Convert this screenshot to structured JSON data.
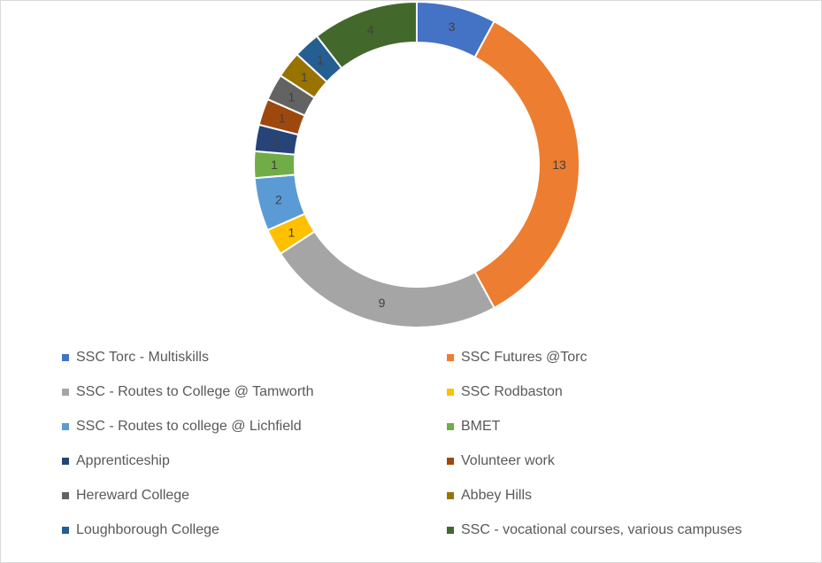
{
  "chart_data": {
    "type": "pie",
    "variant": "doughnut",
    "title": "",
    "categories": [
      "SSC Torc - Multiskills",
      "SSC Futures @Torc",
      "SSC - Routes to College @ Tamworth",
      "SSC Rodbaston",
      "SSC  - Routes to college @ Lichfield",
      "BMET",
      "Apprenticeship",
      "Volunteer work",
      "Hereward College",
      "Abbey Hills",
      "Loughborough College",
      "SSC - vocational courses, various campuses"
    ],
    "values": [
      3,
      13,
      9,
      1,
      2,
      1,
      1,
      1,
      1,
      1,
      1,
      4
    ],
    "colors": [
      "#4472C4",
      "#ED7D31",
      "#A5A5A5",
      "#FFC000",
      "#5B9BD5",
      "#70AD47",
      "#264478",
      "#9E480E",
      "#636363",
      "#997300",
      "#255E91",
      "#43682B"
    ],
    "legend_position": "bottom",
    "legend_columns": 2
  }
}
